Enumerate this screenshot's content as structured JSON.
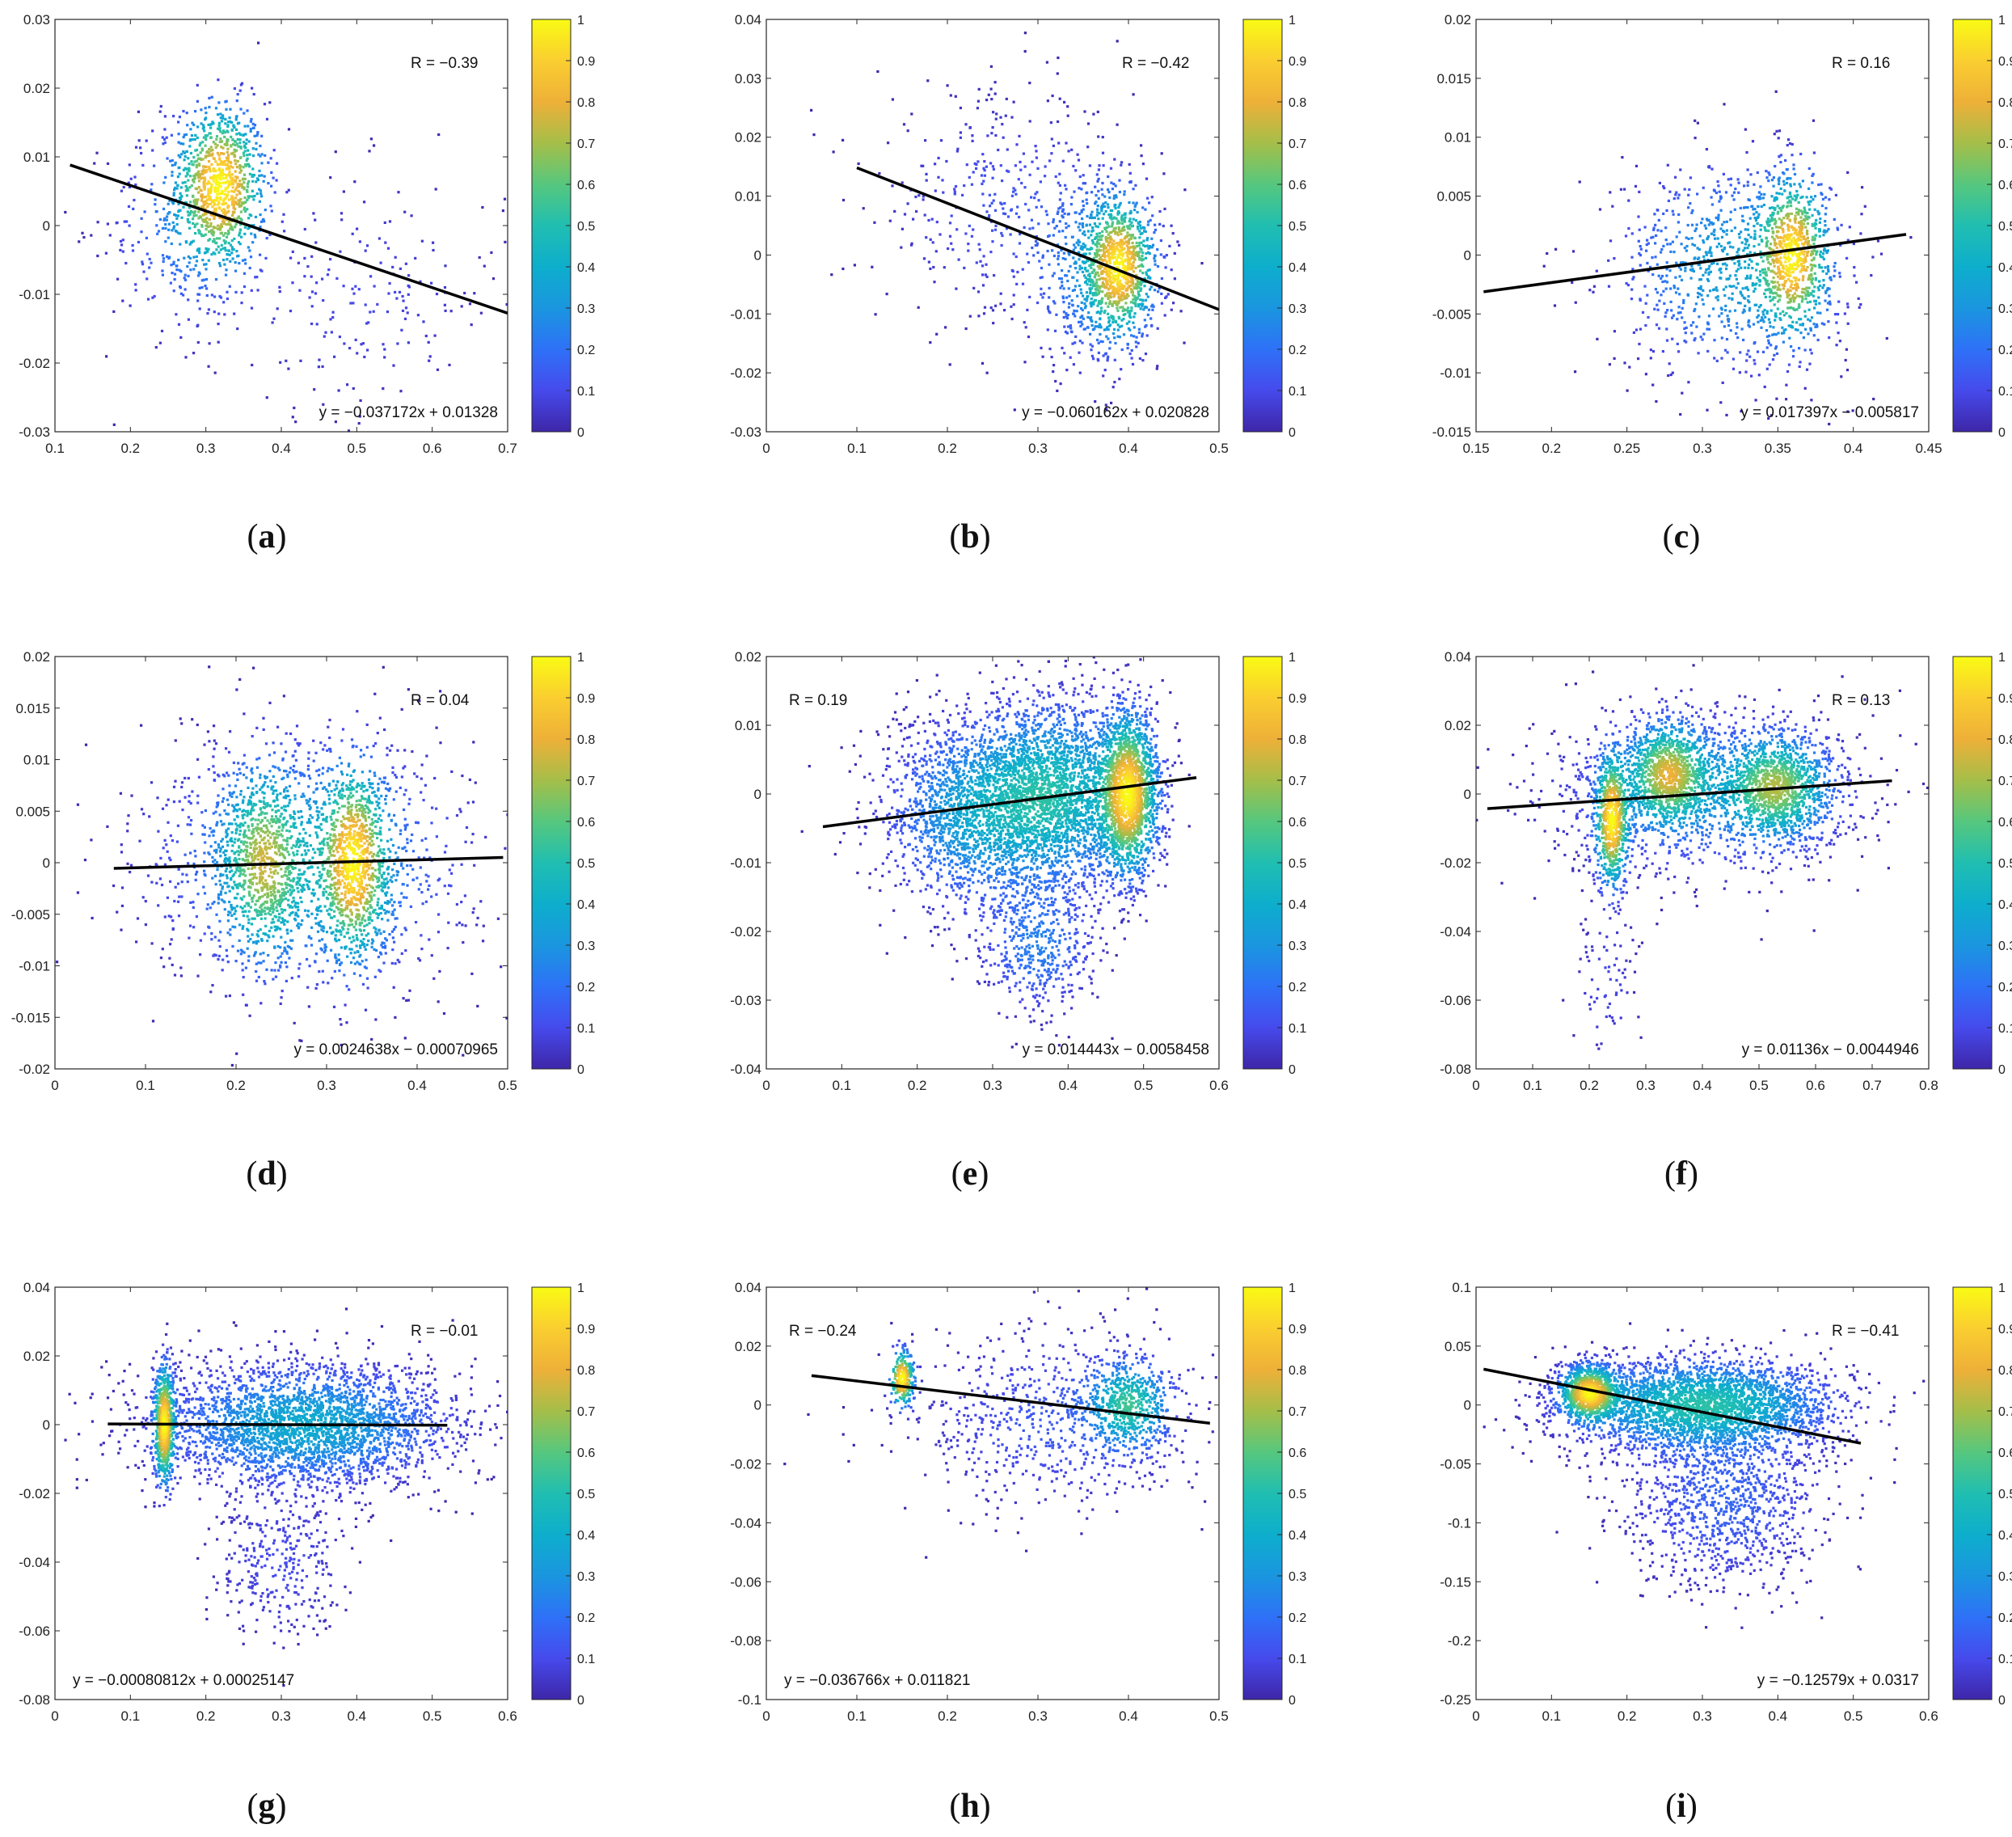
{
  "colorbar": {
    "ticks": [
      "0",
      "0.1",
      "0.2",
      "0.3",
      "0.4",
      "0.5",
      "0.6",
      "0.7",
      "0.8",
      "0.9",
      "1"
    ]
  },
  "colors": {
    "line": "#000000",
    "axis": "#262626"
  },
  "chart_data": [
    {
      "caption_letter": "a",
      "type": "scatter",
      "xlim": [
        0.1,
        0.7
      ],
      "ylim": [
        -0.03,
        0.03
      ],
      "xticks": [
        "0.1",
        "0.2",
        "0.3",
        "0.4",
        "0.5",
        "0.6",
        "0.7"
      ],
      "yticks": [
        "-0.03",
        "-0.02",
        "-0.01",
        "0",
        "0.01",
        "0.02",
        "0.03"
      ],
      "r_label": "R = −0.39",
      "r_pos": "top-right",
      "equation": "y = −0.037172x + 0.01328",
      "slope": -0.037172,
      "intercept": 0.01328,
      "line_x": [
        0.12,
        0.7
      ],
      "clusters": [
        {
          "x": 0.32,
          "y": 0.006,
          "sx": 0.03,
          "sy": 0.006,
          "n": 900
        },
        {
          "x": 0.27,
          "y": 0.0,
          "sx": 0.05,
          "sy": 0.008,
          "n": 300
        },
        {
          "x": 0.5,
          "y": -0.01,
          "sx": 0.1,
          "sy": 0.009,
          "n": 220
        }
      ]
    },
    {
      "caption_letter": "b",
      "type": "scatter",
      "xlim": [
        0,
        0.5
      ],
      "ylim": [
        -0.03,
        0.04
      ],
      "xticks": [
        "0",
        "0.1",
        "0.2",
        "0.3",
        "0.4",
        "0.5"
      ],
      "yticks": [
        "-0.03",
        "-0.02",
        "-0.01",
        "0",
        "0.01",
        "0.02",
        "0.03",
        "0.04"
      ],
      "r_label": "R = −0.42",
      "r_pos": "top-right",
      "equation": "y = −0.060162x + 0.020828",
      "slope": -0.060162,
      "intercept": 0.020828,
      "line_x": [
        0.1,
        0.5
      ],
      "clusters": [
        {
          "x": 0.39,
          "y": -0.002,
          "sx": 0.02,
          "sy": 0.006,
          "n": 900
        },
        {
          "x": 0.36,
          "y": -0.003,
          "sx": 0.04,
          "sy": 0.009,
          "n": 450
        },
        {
          "x": 0.26,
          "y": 0.008,
          "sx": 0.07,
          "sy": 0.01,
          "n": 380
        }
      ]
    },
    {
      "caption_letter": "c",
      "type": "scatter",
      "xlim": [
        0.15,
        0.45
      ],
      "ylim": [
        -0.015,
        0.02
      ],
      "xticks": [
        "0.15",
        "0.2",
        "0.25",
        "0.3",
        "0.35",
        "0.4",
        "0.45"
      ],
      "yticks": [
        "-0.015",
        "-0.01",
        "-0.005",
        "0",
        "0.005",
        "0.01",
        "0.015",
        "0.02"
      ],
      "r_label": "R = 0.16",
      "r_pos": "top-right",
      "equation": "y = 0.017397x − 0.005817",
      "slope": 0.017397,
      "intercept": -0.005817,
      "line_x": [
        0.155,
        0.435
      ],
      "clusters": [
        {
          "x": 0.36,
          "y": 0.0,
          "sx": 0.012,
          "sy": 0.0035,
          "n": 700
        },
        {
          "x": 0.32,
          "y": -0.001,
          "sx": 0.04,
          "sy": 0.0045,
          "n": 900
        }
      ]
    },
    {
      "caption_letter": "d",
      "type": "scatter",
      "xlim": [
        0,
        0.5
      ],
      "ylim": [
        -0.02,
        0.02
      ],
      "xticks": [
        "0",
        "0.1",
        "0.2",
        "0.3",
        "0.4",
        "0.5"
      ],
      "yticks": [
        "-0.02",
        "-0.015",
        "-0.01",
        "-0.005",
        "0",
        "0.005",
        "0.01",
        "0.015",
        "0.02"
      ],
      "r_label": "R = 0.04",
      "r_pos": "top-right",
      "equation": "y = 0.0024638x − 0.00070965",
      "slope": 0.0024638,
      "intercept": -0.00070965,
      "line_x": [
        0.065,
        0.495
      ],
      "clusters": [
        {
          "x": 0.33,
          "y": 0.0,
          "sx": 0.02,
          "sy": 0.005,
          "n": 900
        },
        {
          "x": 0.23,
          "y": 0.0,
          "sx": 0.025,
          "sy": 0.005,
          "n": 700
        },
        {
          "x": 0.28,
          "y": 0.0,
          "sx": 0.09,
          "sy": 0.006,
          "n": 1400
        }
      ]
    },
    {
      "caption_letter": "e",
      "type": "scatter",
      "xlim": [
        0,
        0.6
      ],
      "ylim": [
        -0.04,
        0.02
      ],
      "xticks": [
        "0",
        "0.1",
        "0.2",
        "0.3",
        "0.4",
        "0.5",
        "0.6"
      ],
      "yticks": [
        "-0.04",
        "-0.03",
        "-0.02",
        "-0.01",
        "0",
        "0.01",
        "0.02"
      ],
      "r_label": "R = 0.19",
      "r_pos": "top-left",
      "equation": "y = 0.014443x − 0.0058458",
      "slope": 0.014443,
      "intercept": -0.0058458,
      "line_x": [
        0.075,
        0.57
      ],
      "clusters": [
        {
          "x": 0.48,
          "y": 0.0,
          "sx": 0.02,
          "sy": 0.006,
          "n": 1800
        },
        {
          "x": 0.38,
          "y": 0.0,
          "sx": 0.06,
          "sy": 0.007,
          "n": 2600
        },
        {
          "x": 0.27,
          "y": -0.003,
          "sx": 0.06,
          "sy": 0.007,
          "n": 1600
        },
        {
          "x": 0.36,
          "y": -0.022,
          "sx": 0.04,
          "sy": 0.005,
          "n": 500
        }
      ]
    },
    {
      "caption_letter": "f",
      "type": "scatter",
      "xlim": [
        0,
        0.8
      ],
      "ylim": [
        -0.08,
        0.04
      ],
      "xticks": [
        "0",
        "0.1",
        "0.2",
        "0.3",
        "0.4",
        "0.5",
        "0.6",
        "0.7",
        "0.8"
      ],
      "yticks": [
        "-0.08",
        "-0.06",
        "-0.04",
        "-0.02",
        "0",
        "0.02",
        "0.04"
      ],
      "r_label": "R = 0.13",
      "r_pos": "top-right",
      "equation": "y = 0.01136x − 0.0044946",
      "slope": 0.01136,
      "intercept": -0.0044946,
      "line_x": [
        0.02,
        0.735
      ],
      "clusters": [
        {
          "x": 0.24,
          "y": -0.008,
          "sx": 0.015,
          "sy": 0.01,
          "n": 700
        },
        {
          "x": 0.34,
          "y": 0.006,
          "sx": 0.04,
          "sy": 0.008,
          "n": 1000
        },
        {
          "x": 0.53,
          "y": 0.002,
          "sx": 0.05,
          "sy": 0.008,
          "n": 1100
        },
        {
          "x": 0.4,
          "y": 0.0,
          "sx": 0.14,
          "sy": 0.012,
          "n": 1300
        },
        {
          "x": 0.23,
          "y": -0.055,
          "sx": 0.03,
          "sy": 0.012,
          "n": 80
        }
      ]
    },
    {
      "caption_letter": "g",
      "type": "scatter",
      "xlim": [
        0,
        0.6
      ],
      "ylim": [
        -0.08,
        0.04
      ],
      "xticks": [
        "0",
        "0.1",
        "0.2",
        "0.3",
        "0.4",
        "0.5",
        "0.6"
      ],
      "yticks": [
        "-0.08",
        "-0.06",
        "-0.04",
        "-0.02",
        "0",
        "0.02",
        "0.04"
      ],
      "r_label": "R = −0.01",
      "r_pos": "top-right",
      "equation": "y = −0.00080812x + 0.00025147",
      "slope": -0.00080812,
      "intercept": 0.00025147,
      "line_x": [
        0.07,
        0.52
      ],
      "clusters": [
        {
          "x": 0.145,
          "y": 0.0,
          "sx": 0.007,
          "sy": 0.009,
          "n": 700
        },
        {
          "x": 0.33,
          "y": 0.0,
          "sx": 0.1,
          "sy": 0.009,
          "n": 3000
        },
        {
          "x": 0.3,
          "y": -0.04,
          "sx": 0.05,
          "sy": 0.012,
          "n": 350
        }
      ]
    },
    {
      "caption_letter": "h",
      "type": "scatter",
      "xlim": [
        0,
        0.5
      ],
      "ylim": [
        -0.1,
        0.04
      ],
      "xticks": [
        "0",
        "0.1",
        "0.2",
        "0.3",
        "0.4",
        "0.5"
      ],
      "yticks": [
        "-0.1",
        "-0.08",
        "-0.06",
        "-0.04",
        "-0.02",
        "0",
        "0.02",
        "0.04"
      ],
      "r_label": "R = −0.24",
      "r_pos": "top-left",
      "equation": "y = −0.036766x + 0.011821",
      "slope": -0.036766,
      "intercept": 0.011821,
      "line_x": [
        0.05,
        0.49
      ],
      "clusters": [
        {
          "x": 0.15,
          "y": 0.009,
          "sx": 0.007,
          "sy": 0.005,
          "n": 250
        },
        {
          "x": 0.4,
          "y": 0.0,
          "sx": 0.025,
          "sy": 0.008,
          "n": 600
        },
        {
          "x": 0.32,
          "y": -0.005,
          "sx": 0.08,
          "sy": 0.016,
          "n": 700
        }
      ]
    },
    {
      "caption_letter": "i",
      "type": "scatter",
      "xlim": [
        0,
        0.6
      ],
      "ylim": [
        -0.25,
        0.1
      ],
      "xticks": [
        "0",
        "0.1",
        "0.2",
        "0.3",
        "0.4",
        "0.5",
        "0.6"
      ],
      "yticks": [
        "-0.25",
        "-0.2",
        "-0.15",
        "-0.1",
        "-0.05",
        "0",
        "0.05",
        "0.1"
      ],
      "r_label": "R = −0.41",
      "r_pos": "top-right",
      "equation": "y = −0.12579x + 0.0317",
      "slope": -0.12579,
      "intercept": 0.0317,
      "line_x": [
        0.01,
        0.51
      ],
      "clusters": [
        {
          "x": 0.15,
          "y": 0.01,
          "sx": 0.02,
          "sy": 0.012,
          "n": 900
        },
        {
          "x": 0.3,
          "y": 0.0,
          "sx": 0.09,
          "sy": 0.02,
          "n": 3000
        },
        {
          "x": 0.33,
          "y": -0.08,
          "sx": 0.07,
          "sy": 0.04,
          "n": 1100
        }
      ]
    }
  ]
}
